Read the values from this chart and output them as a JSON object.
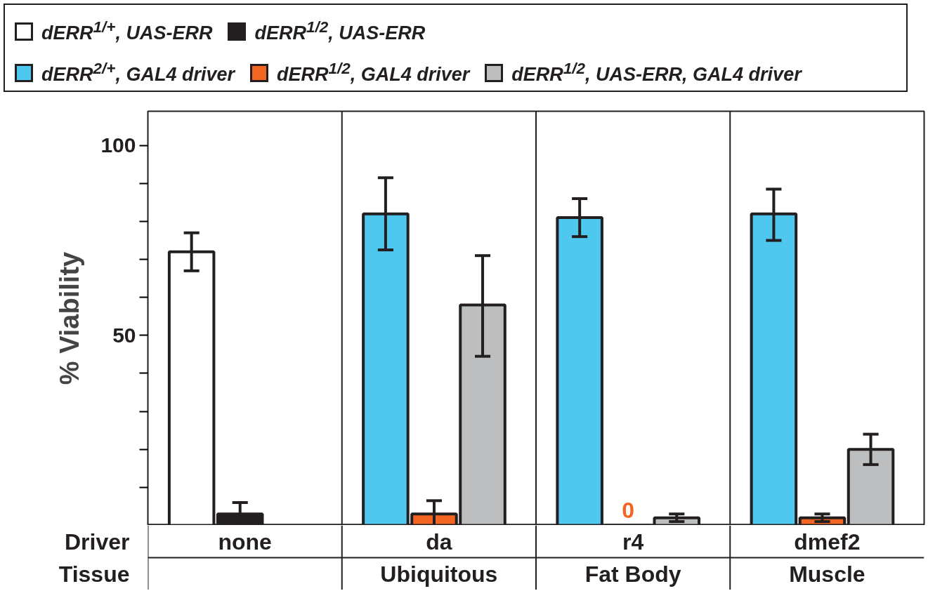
{
  "chart_data": {
    "type": "bar",
    "ylabel": "% Viability",
    "categories": [
      "none",
      "da",
      "r4",
      "dmef2"
    ],
    "series": [
      {
        "name": "dERR$^{1/+}$, UAS-ERR",
        "color": "#ffffff",
        "values": [
          72,
          null,
          null,
          null
        ],
        "errors": [
          [
            67,
            77
          ],
          null,
          null,
          null
        ]
      },
      {
        "name": "dERR$^{1/2}$, UAS-ERR",
        "color": "#231f20",
        "values": [
          3,
          null,
          null,
          null
        ],
        "errors": [
          3,
          null,
          null,
          null
        ]
      },
      {
        "name": "dERR$^{2/+}$, GAL4 driver",
        "color": "#4fc8f0",
        "values": [
          null,
          82,
          81,
          82
        ],
        "errors": [
          null,
          [
            72.5,
            91.5
          ],
          [
            76,
            86
          ],
          [
            75,
            88.5
          ]
        ]
      },
      {
        "name": "dERR$^{1/2}$, GAL4 driver",
        "color": "#f26522",
        "values": [
          null,
          3,
          0,
          2
        ],
        "errors": [
          null,
          3.5,
          null,
          1
        ],
        "value_labels": [
          null,
          null,
          "0",
          null
        ]
      },
      {
        "name": "dERR$^{1/2}$, UAS-ERR, GAL4 driver",
        "color": "#bcbec0",
        "values": [
          null,
          58,
          2,
          20
        ],
        "errors": [
          null,
          [
            44.5,
            71
          ],
          1,
          [
            16,
            24
          ]
        ]
      }
    ],
    "ylim": [
      0,
      109
    ],
    "yticks": [
      {
        "value": 10,
        "label": null
      },
      {
        "value": 20,
        "label": null
      },
      {
        "value": 30,
        "label": null
      },
      {
        "value": 40,
        "label": null
      },
      50,
      {
        "value": 60,
        "label": null
      },
      {
        "value": 70,
        "label": null
      },
      {
        "value": 80,
        "label": null
      },
      {
        "value": 90,
        "label": null
      },
      100
    ],
    "annotations": [
      "Driver",
      "Tissue",
      "Ubiquitous",
      "Fat Body",
      "Muscle"
    ],
    "legend": "top",
    "grid": false
  }
}
